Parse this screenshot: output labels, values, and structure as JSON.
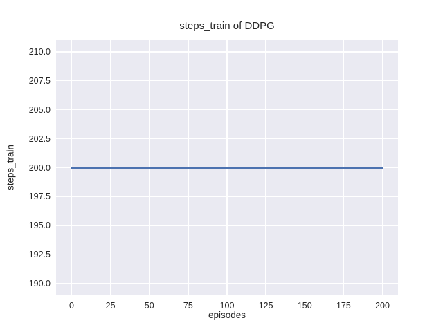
{
  "chart_data": {
    "type": "line",
    "title": "steps_train of DDPG",
    "xlabel": "episodes",
    "ylabel": "steps_train",
    "xlim": [
      -10,
      210
    ],
    "ylim": [
      189,
      211
    ],
    "xticks": [
      0,
      25,
      50,
      75,
      100,
      125,
      150,
      175,
      200
    ],
    "xtick_labels": [
      "0",
      "25",
      "50",
      "75",
      "100",
      "125",
      "150",
      "175",
      "200"
    ],
    "yticks": [
      190.0,
      192.5,
      195.0,
      197.5,
      200.0,
      202.5,
      205.0,
      207.5,
      210.0
    ],
    "ytick_labels": [
      "190.0",
      "192.5",
      "195.0",
      "197.5",
      "200.0",
      "202.5",
      "205.0",
      "207.5",
      "210.0"
    ],
    "grid": true,
    "legend": "none",
    "series": [
      {
        "name": "steps_train",
        "y_constant": 200,
        "x_start": 0,
        "x_end": 200
      }
    ],
    "colors": {
      "figure_bg": "#ffffff",
      "axes_bg": "#eaeaf2",
      "grid": "#ffffff",
      "line": "#4c72b0",
      "text": "#262626"
    }
  }
}
